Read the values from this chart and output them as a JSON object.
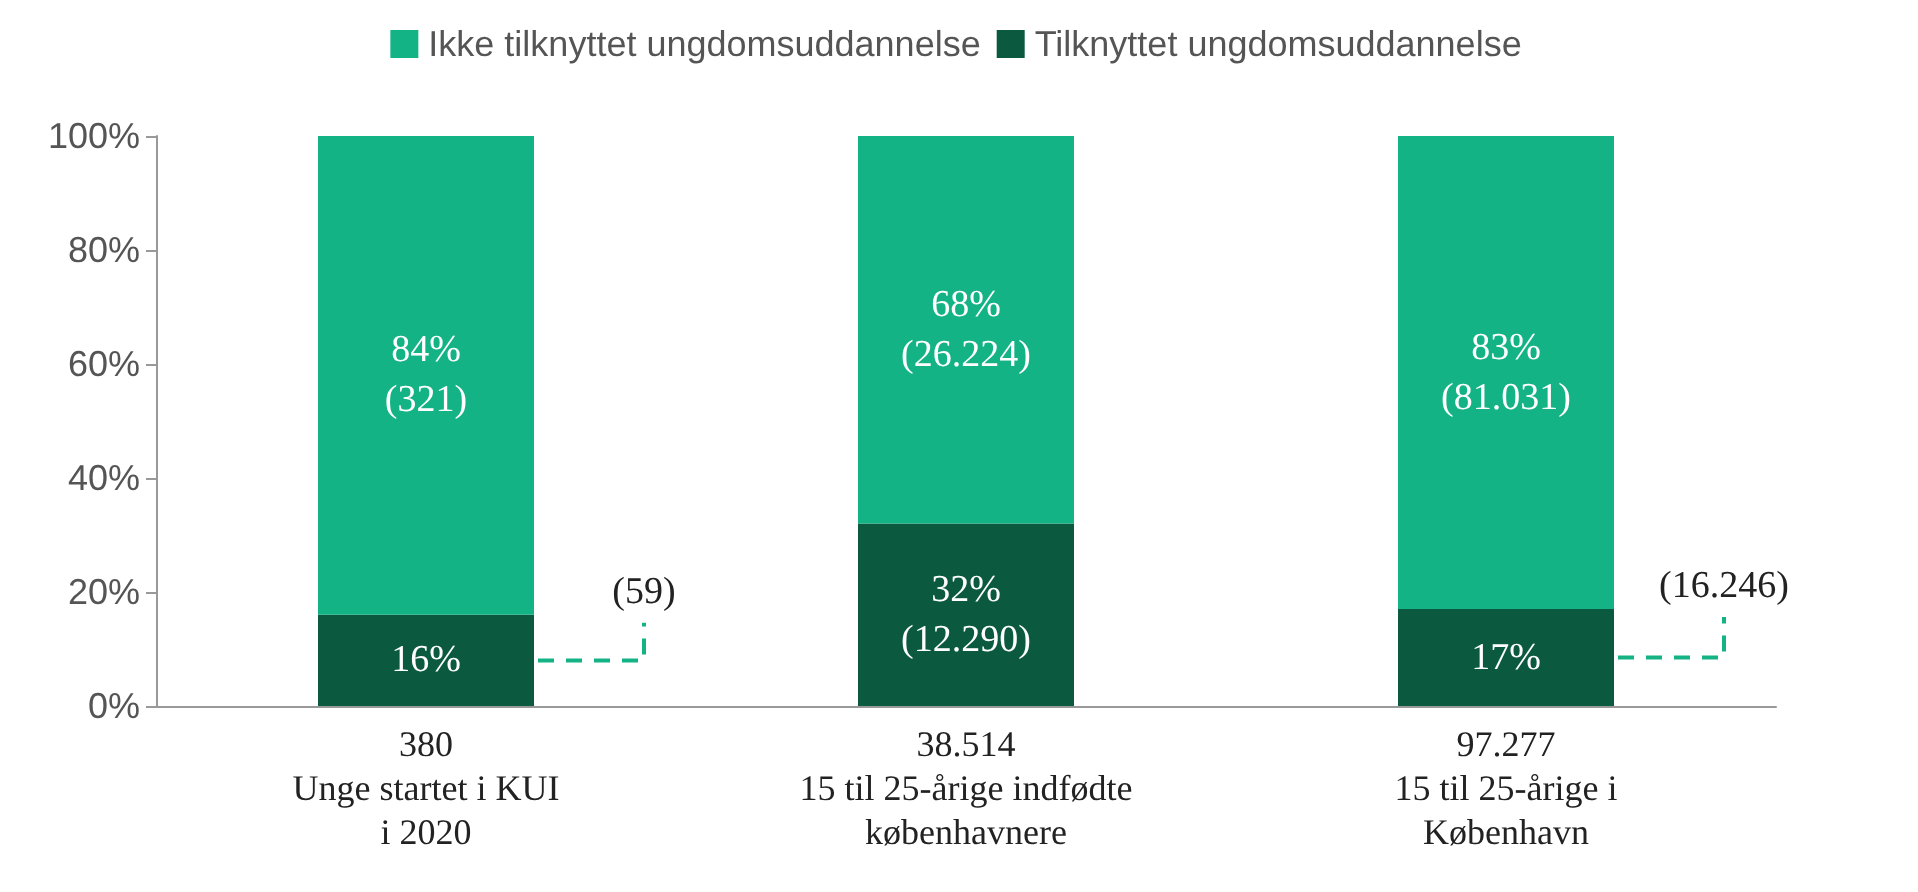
{
  "chart_data": {
    "type": "bar",
    "stacked": true,
    "categories": [
      "380\nUnge startet i KUI\ni 2020",
      "38.514\n15 til 25-årige indfødte\nkøbenhavnere",
      "97.277\n15 til 25-årige i\nKøbenhavn"
    ],
    "series": [
      {
        "name": "Tilknyttet ungdomsuddannelse",
        "color": "#0b5a40",
        "values": [
          16,
          32,
          17
        ],
        "value_labels": [
          "16%",
          "32%\n(12.290)",
          "17%"
        ]
      },
      {
        "name": "Ikke tilknyttet ungdomsuddannelse",
        "color": "#14b386",
        "values": [
          84,
          68,
          83
        ],
        "value_labels": [
          "84%\n(321)",
          "68%\n(26.224)",
          "83%\n(81.031)"
        ]
      }
    ],
    "annotations": [
      "(59)",
      "(16.246)"
    ],
    "ylim": [
      0,
      100
    ],
    "yticks": [
      {
        "value": 0,
        "label": "0%"
      },
      {
        "value": 20,
        "label": "20%"
      },
      {
        "value": 40,
        "label": "40%"
      },
      {
        "value": 60,
        "label": "60%"
      },
      {
        "value": 80,
        "label": "80%"
      },
      {
        "value": 100,
        "label": "100%"
      }
    ],
    "grid": false,
    "legend": "top"
  }
}
